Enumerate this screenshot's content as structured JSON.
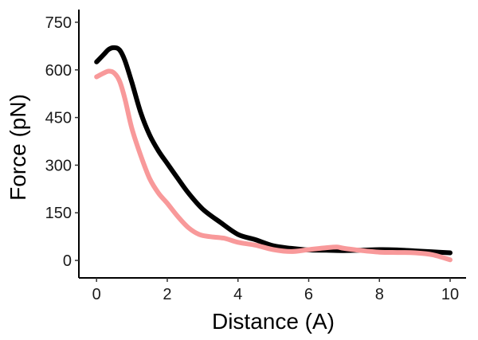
{
  "chart_data": {
    "type": "line",
    "title": "",
    "xlabel": "Distance (A)",
    "ylabel": "Force (pN)",
    "xlim": [
      -0.5,
      10.45
    ],
    "ylim": [
      -55,
      790
    ],
    "xticks": [
      0,
      2,
      4,
      6,
      8,
      10
    ],
    "yticks": [
      0,
      150,
      300,
      450,
      600,
      750
    ],
    "grid": false,
    "legend": "none",
    "series": [
      {
        "color": "#000000",
        "x": [
          0,
          0.2,
          0.35,
          0.5,
          0.65,
          0.8,
          1.0,
          1.25,
          1.5,
          1.75,
          2.0,
          2.3,
          2.6,
          3.0,
          3.5,
          4.0,
          4.5,
          5.0,
          5.5,
          6.0,
          6.5,
          7.0,
          7.5,
          8.0,
          8.5,
          9.0,
          9.5,
          10.0
        ],
        "y": [
          625,
          648,
          665,
          670,
          663,
          630,
          560,
          465,
          395,
          345,
          305,
          258,
          212,
          162,
          120,
          82,
          65,
          46,
          38,
          33,
          32,
          31,
          32,
          34,
          33,
          30,
          27,
          24
        ]
      },
      {
        "color": "#f8999a",
        "x": [
          0,
          0.2,
          0.35,
          0.5,
          0.65,
          0.8,
          1.0,
          1.25,
          1.5,
          1.75,
          2.0,
          2.3,
          2.6,
          2.9,
          3.2,
          3.6,
          4.0,
          4.5,
          5.0,
          5.5,
          6.0,
          6.5,
          6.8,
          7.0,
          7.5,
          8.0,
          8.5,
          9.0,
          9.5,
          10.0
        ],
        "y": [
          578,
          590,
          596,
          590,
          565,
          510,
          415,
          330,
          258,
          212,
          180,
          138,
          103,
          82,
          75,
          70,
          57,
          48,
          34,
          28,
          34,
          40,
          42,
          38,
          31,
          26,
          25,
          24,
          18,
          2
        ]
      }
    ]
  }
}
